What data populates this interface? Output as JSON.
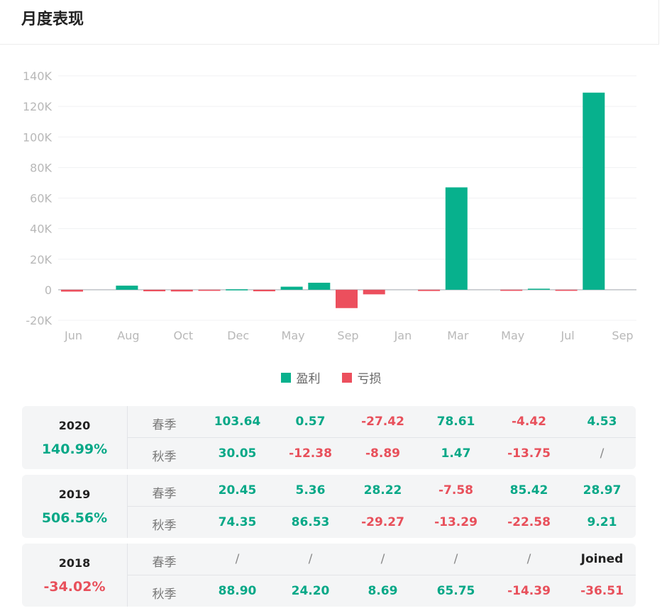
{
  "title": "月度表现",
  "colors": {
    "profit": "#07b18d",
    "loss": "#ec4f5d"
  },
  "legend": {
    "profit": "盈利",
    "loss": "亏损"
  },
  "chart_data": {
    "type": "bar",
    "y_ticks": [
      "140K",
      "120K",
      "100K",
      "80K",
      "60K",
      "40K",
      "20K",
      "0",
      "-20K"
    ],
    "y_tick_values": [
      140000,
      120000,
      100000,
      80000,
      60000,
      40000,
      20000,
      0,
      -20000
    ],
    "ylim": [
      -20000,
      140000
    ],
    "x_tick_labels": [
      "Jun",
      "Aug",
      "Oct",
      "Dec",
      "May",
      "Sep",
      "Jan",
      "Mar",
      "May",
      "Jul",
      "Sep"
    ],
    "grid": true,
    "legend_position": "bottom",
    "bars": [
      {
        "slot": 0,
        "value": -1200
      },
      {
        "slot": 2,
        "value": 2700
      },
      {
        "slot": 3,
        "value": -1000
      },
      {
        "slot": 4,
        "value": -1100
      },
      {
        "slot": 5,
        "value": -300
      },
      {
        "slot": 6,
        "value": 300
      },
      {
        "slot": 7,
        "value": -1000
      },
      {
        "slot": 8,
        "value": 2000
      },
      {
        "slot": 9,
        "value": 4600
      },
      {
        "slot": 10,
        "value": -12000
      },
      {
        "slot": 11,
        "value": -3000
      },
      {
        "slot": 13,
        "value": -800
      },
      {
        "slot": 14,
        "value": 67000
      },
      {
        "slot": 16,
        "value": -300
      },
      {
        "slot": 17,
        "value": 700
      },
      {
        "slot": 18,
        "value": -300
      },
      {
        "slot": 19,
        "value": 129000
      }
    ]
  },
  "years": [
    {
      "year": "2020",
      "total": "140.99%",
      "total_sign": "pos",
      "spring": {
        "label": "春季",
        "values": [
          {
            "v": "103.64",
            "s": "pos"
          },
          {
            "v": "0.57",
            "s": "pos"
          },
          {
            "v": "-27.42",
            "s": "neg"
          },
          {
            "v": "78.61",
            "s": "pos"
          },
          {
            "v": "-4.42",
            "s": "neg"
          },
          {
            "v": "4.53",
            "s": "pos"
          }
        ]
      },
      "autumn": {
        "label": "秋季",
        "values": [
          {
            "v": "30.05",
            "s": "pos"
          },
          {
            "v": "-12.38",
            "s": "neg"
          },
          {
            "v": "-8.89",
            "s": "neg"
          },
          {
            "v": "1.47",
            "s": "pos"
          },
          {
            "v": "-13.75",
            "s": "neg"
          },
          {
            "v": "/",
            "s": "neutral"
          }
        ]
      }
    },
    {
      "year": "2019",
      "total": "506.56%",
      "total_sign": "pos",
      "spring": {
        "label": "春季",
        "values": [
          {
            "v": "20.45",
            "s": "pos"
          },
          {
            "v": "5.36",
            "s": "pos"
          },
          {
            "v": "28.22",
            "s": "pos"
          },
          {
            "v": "-7.58",
            "s": "neg"
          },
          {
            "v": "85.42",
            "s": "pos"
          },
          {
            "v": "28.97",
            "s": "pos"
          }
        ]
      },
      "autumn": {
        "label": "秋季",
        "values": [
          {
            "v": "74.35",
            "s": "pos"
          },
          {
            "v": "86.53",
            "s": "pos"
          },
          {
            "v": "-29.27",
            "s": "neg"
          },
          {
            "v": "-13.29",
            "s": "neg"
          },
          {
            "v": "-22.58",
            "s": "neg"
          },
          {
            "v": "9.21",
            "s": "pos"
          }
        ]
      }
    },
    {
      "year": "2018",
      "total": "-34.02%",
      "total_sign": "neg",
      "spring": {
        "label": "春季",
        "values": [
          {
            "v": "/",
            "s": "neutral"
          },
          {
            "v": "/",
            "s": "neutral"
          },
          {
            "v": "/",
            "s": "neutral"
          },
          {
            "v": "/",
            "s": "neutral"
          },
          {
            "v": "/",
            "s": "neutral"
          },
          {
            "v": "Joined",
            "s": "dark"
          }
        ]
      },
      "autumn": {
        "label": "秋季",
        "values": [
          {
            "v": "88.90",
            "s": "pos"
          },
          {
            "v": "24.20",
            "s": "pos"
          },
          {
            "v": "8.69",
            "s": "pos"
          },
          {
            "v": "65.75",
            "s": "pos"
          },
          {
            "v": "-14.39",
            "s": "neg"
          },
          {
            "v": "-36.51",
            "s": "neg"
          }
        ]
      }
    }
  ]
}
